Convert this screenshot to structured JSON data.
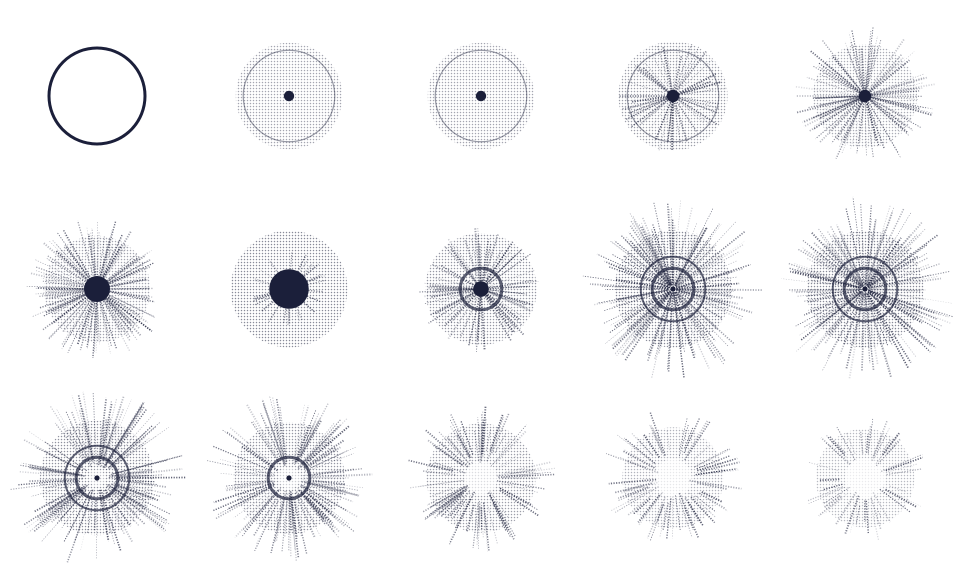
{
  "ink_color": "#1b1f3a",
  "background": "#ffffff",
  "grid": {
    "rows": 3,
    "columns": 5
  },
  "figures": [
    {
      "kind": "ring-solid-edge",
      "halo": 0.1,
      "rays": 0,
      "core": 0,
      "inner_rings": 0,
      "hollow": 1.0,
      "ray_density": 0.0
    },
    {
      "kind": "faint-disk-dot",
      "halo": 0.25,
      "rays": 0,
      "core": 0.1,
      "inner_rings": 0,
      "hollow": 0.0,
      "ray_density": 0.0
    },
    {
      "kind": "faint-disk-dot",
      "halo": 0.25,
      "rays": 0,
      "core": 0.1,
      "inner_rings": 0,
      "hollow": 0.0,
      "ray_density": 0.0
    },
    {
      "kind": "disk-dot-rays",
      "halo": 0.3,
      "rays": 0.35,
      "core": 0.12,
      "inner_rings": 0,
      "hollow": 0.0,
      "ray_density": 0.4
    },
    {
      "kind": "starburst-dot",
      "halo": 0.2,
      "rays": 0.55,
      "core": 0.12,
      "inner_rings": 0,
      "hollow": 0.0,
      "ray_density": 0.7
    },
    {
      "kind": "starburst-core",
      "halo": 0.25,
      "rays": 0.55,
      "core": 0.25,
      "inner_rings": 0,
      "hollow": 0.0,
      "ray_density": 0.9
    },
    {
      "kind": "soft-blob-core",
      "halo": 0.45,
      "rays": 0.1,
      "core": 0.38,
      "inner_rings": 0,
      "hollow": 0.0,
      "ray_density": 0.2
    },
    {
      "kind": "diffuse-cross",
      "halo": 0.35,
      "rays": 0.45,
      "core": 0.15,
      "inner_rings": 1,
      "hollow": 0.0,
      "ray_density": 0.6
    },
    {
      "kind": "dense-ring-burst",
      "halo": 0.45,
      "rays": 0.85,
      "core": 0.05,
      "inner_rings": 2,
      "hollow": 0.0,
      "ray_density": 1.0
    },
    {
      "kind": "dense-ring-burst",
      "halo": 0.45,
      "rays": 0.85,
      "core": 0.05,
      "inner_rings": 2,
      "hollow": 0.0,
      "ray_density": 1.0
    },
    {
      "kind": "fractured-ring",
      "halo": 0.4,
      "rays": 0.8,
      "core": 0.05,
      "inner_rings": 2,
      "hollow": 0.1,
      "ray_density": 0.95
    },
    {
      "kind": "fractured-ring",
      "halo": 0.35,
      "rays": 0.75,
      "core": 0.05,
      "inner_rings": 1,
      "hollow": 0.2,
      "ray_density": 0.85
    },
    {
      "kind": "hollow-burst",
      "halo": 0.3,
      "rays": 0.6,
      "core": 0.0,
      "inner_rings": 0,
      "hollow": 0.45,
      "ray_density": 0.65
    },
    {
      "kind": "hollow-burst-sparse",
      "halo": 0.15,
      "rays": 0.55,
      "core": 0.0,
      "inner_rings": 0,
      "hollow": 0.55,
      "ray_density": 0.5
    },
    {
      "kind": "hollow-burst-faint",
      "halo": 0.1,
      "rays": 0.45,
      "core": 0.0,
      "inner_rings": 0,
      "hollow": 0.6,
      "ray_density": 0.35
    }
  ]
}
